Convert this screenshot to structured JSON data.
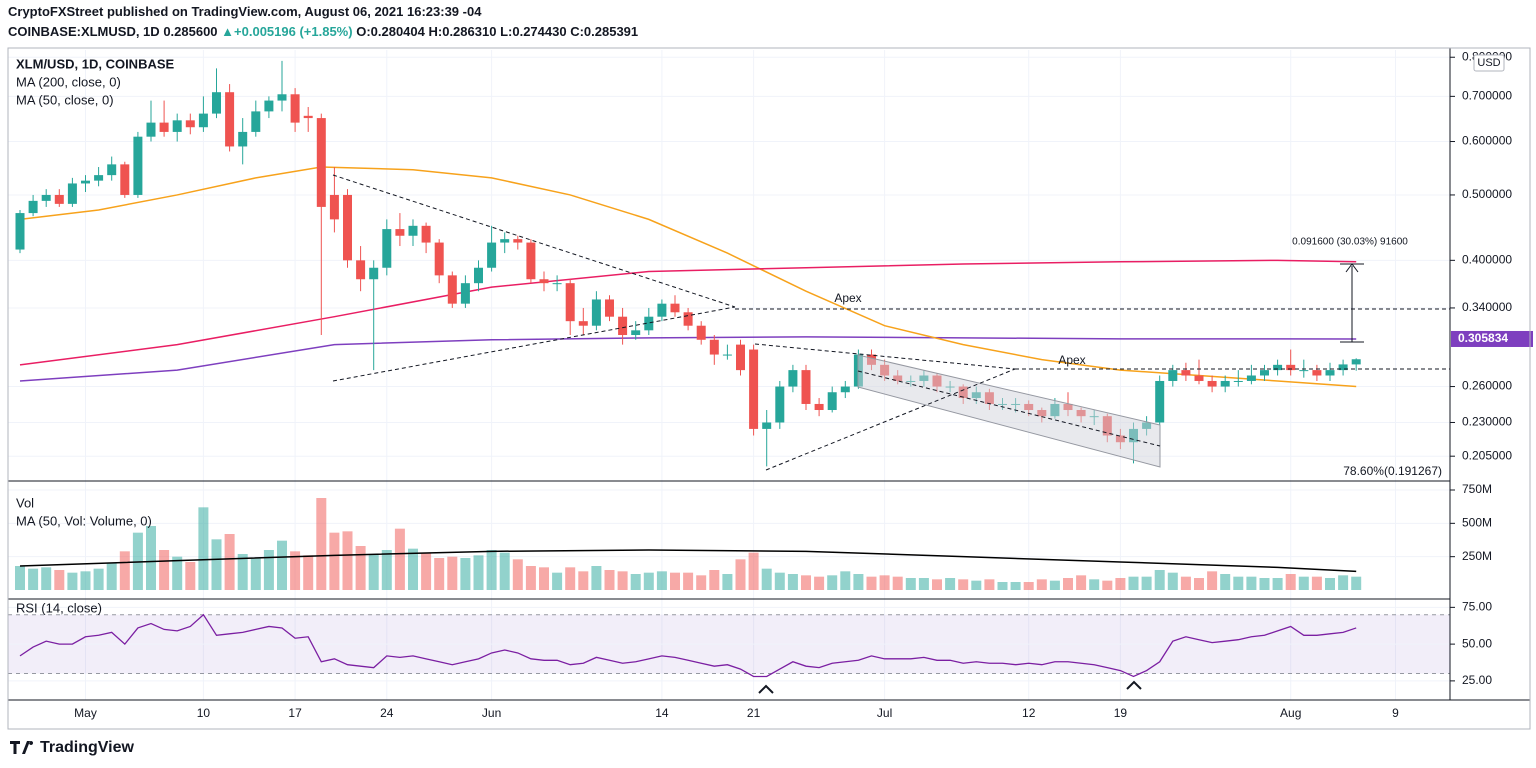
{
  "header": {
    "publisher": "CryptoFXStreet published on TradingView.com, August 06, 2021 16:23:39 -04",
    "symbol": "COINBASE:XLMUSD, 1D",
    "last": "0.285600",
    "change": "▲+0.005196 (+1.85%)",
    "open": "O:0.280404",
    "high": "H:0.286310",
    "low": "L:0.274430",
    "close": "C:0.285391"
  },
  "chart_data": [
    {
      "type": "candlestick",
      "title": "XLM/USD, 1D, COINBASE",
      "currency": "USD",
      "up_color": "#26a69a",
      "down_color": "#ef5350",
      "log_scale": true,
      "ylim": [
        0.189,
        0.82
      ],
      "yticks": [
        {
          "value": 0.8,
          "label": "0.800000"
        },
        {
          "value": 0.7,
          "label": "0.700000"
        },
        {
          "value": 0.6,
          "label": "0.600000"
        },
        {
          "value": 0.5,
          "label": "0.500000"
        },
        {
          "value": 0.4,
          "label": "0.400000"
        },
        {
          "value": 0.34,
          "label": "0.340000"
        },
        {
          "value": 0.26,
          "label": "0.260000"
        },
        {
          "value": 0.23,
          "label": "0.230000"
        },
        {
          "value": 0.205,
          "label": "0.205000"
        }
      ],
      "xticks": [
        {
          "value": 5,
          "label": "May"
        },
        {
          "value": 14,
          "label": "10"
        },
        {
          "value": 21,
          "label": "17"
        },
        {
          "value": 28,
          "label": "24"
        },
        {
          "value": 36,
          "label": "Jun"
        },
        {
          "value": 49,
          "label": "14"
        },
        {
          "value": 56,
          "label": "21"
        },
        {
          "value": 66,
          "label": "Jul"
        },
        {
          "value": 77,
          "label": "12"
        },
        {
          "value": 84,
          "label": "19"
        },
        {
          "value": 97,
          "label": "Aug"
        },
        {
          "value": 105,
          "label": "9"
        }
      ],
      "ohlc": [
        [
          0.415,
          0.475,
          0.41,
          0.47
        ],
        [
          0.47,
          0.5,
          0.465,
          0.49
        ],
        [
          0.49,
          0.51,
          0.48,
          0.5
        ],
        [
          0.5,
          0.51,
          0.48,
          0.485
        ],
        [
          0.485,
          0.53,
          0.48,
          0.52
        ],
        [
          0.52,
          0.535,
          0.505,
          0.525
        ],
        [
          0.525,
          0.55,
          0.515,
          0.535
        ],
        [
          0.535,
          0.57,
          0.525,
          0.555
        ],
        [
          0.555,
          0.56,
          0.495,
          0.5
        ],
        [
          0.5,
          0.62,
          0.495,
          0.61
        ],
        [
          0.61,
          0.69,
          0.6,
          0.64
        ],
        [
          0.64,
          0.69,
          0.61,
          0.62
        ],
        [
          0.62,
          0.66,
          0.6,
          0.645
        ],
        [
          0.645,
          0.66,
          0.615,
          0.63
        ],
        [
          0.63,
          0.7,
          0.62,
          0.66
        ],
        [
          0.66,
          0.77,
          0.65,
          0.71
        ],
        [
          0.71,
          0.73,
          0.58,
          0.59
        ],
        [
          0.59,
          0.65,
          0.555,
          0.62
        ],
        [
          0.62,
          0.69,
          0.61,
          0.665
        ],
        [
          0.665,
          0.7,
          0.65,
          0.69
        ],
        [
          0.69,
          0.79,
          0.665,
          0.705
        ],
        [
          0.705,
          0.72,
          0.62,
          0.64
        ],
        [
          0.655,
          0.675,
          0.62,
          0.65
        ],
        [
          0.65,
          0.66,
          0.31,
          0.48
        ],
        [
          0.5,
          0.55,
          0.44,
          0.46
        ],
        [
          0.5,
          0.51,
          0.39,
          0.4
        ],
        [
          0.4,
          0.42,
          0.36,
          0.375
        ],
        [
          0.375,
          0.4,
          0.275,
          0.39
        ],
        [
          0.39,
          0.46,
          0.38,
          0.445
        ],
        [
          0.445,
          0.47,
          0.42,
          0.435
        ],
        [
          0.435,
          0.46,
          0.42,
          0.45
        ],
        [
          0.45,
          0.455,
          0.41,
          0.425
        ],
        [
          0.425,
          0.43,
          0.37,
          0.38
        ],
        [
          0.38,
          0.385,
          0.34,
          0.345
        ],
        [
          0.345,
          0.38,
          0.34,
          0.37
        ],
        [
          0.37,
          0.4,
          0.36,
          0.39
        ],
        [
          0.39,
          0.45,
          0.385,
          0.425
        ],
        [
          0.425,
          0.44,
          0.41,
          0.43
        ],
        [
          0.43,
          0.435,
          0.415,
          0.425
        ],
        [
          0.425,
          0.43,
          0.37,
          0.375
        ],
        [
          0.375,
          0.385,
          0.36,
          0.37
        ],
        [
          0.37,
          0.38,
          0.36,
          0.37
        ],
        [
          0.37,
          0.375,
          0.31,
          0.325
        ],
        [
          0.325,
          0.34,
          0.31,
          0.32
        ],
        [
          0.32,
          0.36,
          0.315,
          0.35
        ],
        [
          0.35,
          0.355,
          0.325,
          0.33
        ],
        [
          0.33,
          0.34,
          0.3,
          0.31
        ],
        [
          0.31,
          0.325,
          0.305,
          0.315
        ],
        [
          0.315,
          0.34,
          0.31,
          0.33
        ],
        [
          0.33,
          0.35,
          0.325,
          0.345
        ],
        [
          0.345,
          0.355,
          0.33,
          0.335
        ],
        [
          0.335,
          0.34,
          0.315,
          0.32
        ],
        [
          0.32,
          0.325,
          0.3,
          0.305
        ],
        [
          0.305,
          0.31,
          0.28,
          0.29
        ],
        [
          0.29,
          0.3,
          0.285,
          0.29
        ],
        [
          0.3,
          0.305,
          0.27,
          0.275
        ],
        [
          0.295,
          0.3,
          0.22,
          0.225
        ],
        [
          0.225,
          0.24,
          0.198,
          0.23
        ],
        [
          0.23,
          0.265,
          0.225,
          0.26
        ],
        [
          0.26,
          0.28,
          0.255,
          0.275
        ],
        [
          0.275,
          0.28,
          0.24,
          0.245
        ],
        [
          0.245,
          0.25,
          0.235,
          0.24
        ],
        [
          0.24,
          0.26,
          0.238,
          0.255
        ],
        [
          0.255,
          0.265,
          0.25,
          0.26
        ],
        [
          0.26,
          0.295,
          0.258,
          0.29
        ],
        [
          0.29,
          0.295,
          0.275,
          0.28
        ],
        [
          0.28,
          0.285,
          0.265,
          0.27
        ],
        [
          0.27,
          0.275,
          0.262,
          0.265
        ],
        [
          0.265,
          0.27,
          0.26,
          0.265
        ],
        [
          0.265,
          0.275,
          0.26,
          0.27
        ],
        [
          0.27,
          0.272,
          0.255,
          0.26
        ],
        [
          0.26,
          0.265,
          0.255,
          0.26
        ],
        [
          0.26,
          0.262,
          0.245,
          0.25
        ],
        [
          0.25,
          0.26,
          0.245,
          0.255
        ],
        [
          0.255,
          0.258,
          0.24,
          0.245
        ],
        [
          0.245,
          0.25,
          0.24,
          0.245
        ],
        [
          0.245,
          0.25,
          0.238,
          0.245
        ],
        [
          0.245,
          0.248,
          0.235,
          0.24
        ],
        [
          0.24,
          0.242,
          0.23,
          0.235
        ],
        [
          0.235,
          0.25,
          0.233,
          0.245
        ],
        [
          0.245,
          0.255,
          0.235,
          0.24
        ],
        [
          0.24,
          0.242,
          0.23,
          0.235
        ],
        [
          0.235,
          0.24,
          0.228,
          0.235
        ],
        [
          0.235,
          0.237,
          0.215,
          0.22
        ],
        [
          0.22,
          0.225,
          0.21,
          0.215
        ],
        [
          0.215,
          0.23,
          0.2,
          0.225
        ],
        [
          0.225,
          0.235,
          0.22,
          0.23
        ],
        [
          0.23,
          0.27,
          0.228,
          0.265
        ],
        [
          0.265,
          0.28,
          0.26,
          0.275
        ],
        [
          0.275,
          0.282,
          0.265,
          0.27
        ],
        [
          0.27,
          0.285,
          0.262,
          0.265
        ],
        [
          0.265,
          0.27,
          0.255,
          0.26
        ],
        [
          0.26,
          0.27,
          0.255,
          0.265
        ],
        [
          0.265,
          0.275,
          0.26,
          0.265
        ],
        [
          0.265,
          0.28,
          0.262,
          0.27
        ],
        [
          0.27,
          0.28,
          0.265,
          0.275
        ],
        [
          0.275,
          0.285,
          0.27,
          0.28
        ],
        [
          0.28,
          0.295,
          0.27,
          0.275
        ],
        [
          0.275,
          0.285,
          0.268,
          0.275
        ],
        [
          0.275,
          0.28,
          0.265,
          0.27
        ],
        [
          0.27,
          0.282,
          0.265,
          0.275
        ],
        [
          0.275,
          0.285,
          0.27,
          0.2804
        ],
        [
          0.280404,
          0.28631,
          0.27443,
          0.285391
        ]
      ],
      "lines": [
        {
          "name": "MA (200, close, 0)",
          "color": "#7e3fbf",
          "x": [
            0,
            12,
            24,
            36,
            48,
            60,
            72,
            84,
            96,
            102
          ],
          "values": [
            0.265,
            0.275,
            0.3,
            0.305,
            0.307,
            0.308,
            0.307,
            0.306,
            0.306,
            0.3058
          ]
        },
        {
          "name": "MA (50, close, 0)",
          "color": "#f7a21b",
          "x": [
            0,
            6,
            12,
            18,
            23,
            30,
            36,
            42,
            48,
            54,
            60,
            66,
            72,
            78,
            84,
            90,
            96,
            102
          ],
          "values": [
            0.46,
            0.475,
            0.5,
            0.53,
            0.55,
            0.545,
            0.53,
            0.5,
            0.46,
            0.41,
            0.36,
            0.32,
            0.3,
            0.285,
            0.275,
            0.27,
            0.265,
            0.26
          ]
        },
        {
          "color": "#e91e63",
          "x": [
            0,
            12,
            24,
            36,
            48,
            60,
            72,
            84,
            96,
            102
          ],
          "values": [
            0.28,
            0.3,
            0.33,
            0.365,
            0.385,
            0.39,
            0.395,
            0.398,
            0.4,
            0.398
          ]
        }
      ],
      "price_tag": {
        "value": 0.305834,
        "label": "0.305834",
        "color": "#7e3fbf"
      },
      "annotations": {
        "apex_1": "Apex",
        "apex_2": "Apex",
        "measure": "0.091600 (30.03%) 91600",
        "fib": "78.60%(0.191267)"
      }
    },
    {
      "type": "bar",
      "title": "Vol",
      "ylim": [
        0,
        810
      ],
      "yticks": [
        {
          "value": 750,
          "label": "750M"
        },
        {
          "value": 500,
          "label": "500M"
        },
        {
          "value": 250,
          "label": "250M"
        }
      ],
      "values": [
        180,
        160,
        170,
        150,
        130,
        140,
        160,
        200,
        290,
        430,
        480,
        300,
        250,
        210,
        620,
        380,
        420,
        270,
        240,
        300,
        370,
        290,
        260,
        690,
        430,
        440,
        330,
        270,
        300,
        460,
        310,
        280,
        240,
        250,
        240,
        260,
        300,
        280,
        230,
        180,
        170,
        130,
        170,
        140,
        180,
        150,
        140,
        120,
        130,
        140,
        130,
        130,
        110,
        150,
        120,
        230,
        280,
        160,
        130,
        120,
        110,
        100,
        110,
        140,
        120,
        100,
        110,
        100,
        90,
        90,
        80,
        90,
        80,
        70,
        80,
        60,
        60,
        60,
        80,
        70,
        90,
        110,
        80,
        70,
        90,
        100,
        100,
        150,
        130,
        100,
        90,
        140,
        120,
        100,
        100,
        90,
        90,
        120,
        100,
        100,
        90,
        110,
        100
      ],
      "lines": [
        {
          "name": "MA (50, Vol: Volume, 0)",
          "color": "#000000",
          "x": [
            0,
            12,
            24,
            36,
            48,
            60,
            72,
            84,
            96,
            102
          ],
          "values": [
            180,
            220,
            260,
            290,
            300,
            290,
            250,
            210,
            170,
            140
          ]
        }
      ]
    },
    {
      "type": "line",
      "title": "RSI (14, close)",
      "color": "#7b1fa2",
      "ylim": [
        12,
        80
      ],
      "band": [
        30,
        70
      ],
      "yticks": [
        {
          "value": 75,
          "label": "75.00"
        },
        {
          "value": 50,
          "label": "50.00"
        },
        {
          "value": 25,
          "label": "25.00"
        }
      ],
      "values": [
        42,
        48,
        52,
        50,
        50,
        55,
        56,
        58,
        50,
        61,
        64,
        60,
        59,
        62,
        70,
        56,
        57,
        58,
        60,
        62,
        61,
        54,
        55,
        38,
        40,
        36,
        35,
        34,
        42,
        41,
        42,
        40,
        38,
        36,
        38,
        40,
        44,
        46,
        44,
        40,
        39,
        39,
        36,
        37,
        41,
        39,
        37,
        38,
        40,
        42,
        41,
        39,
        37,
        35,
        36,
        33,
        28,
        28,
        33,
        38,
        35,
        34,
        37,
        38,
        39,
        42,
        40,
        40,
        40,
        41,
        39,
        39,
        37,
        38,
        37,
        37,
        36,
        37,
        36,
        38,
        38,
        37,
        36,
        34,
        32,
        28,
        32,
        38,
        52,
        55,
        53,
        51,
        52,
        53,
        55,
        56,
        59,
        62,
        56,
        56,
        57,
        58,
        61
      ]
    }
  ],
  "footer": {
    "brand": "TradingView"
  }
}
